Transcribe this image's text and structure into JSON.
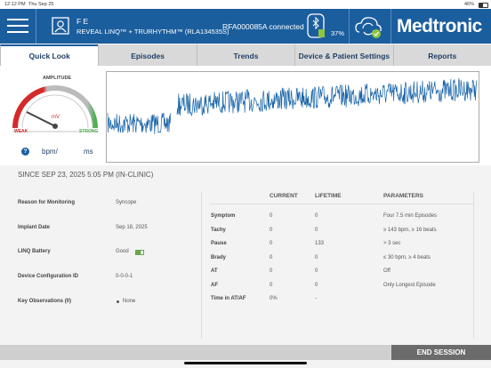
{
  "status": {
    "time": "12:12 PM",
    "date": "Thu Sep 25",
    "battery": "46%"
  },
  "header": {
    "patient": "F E",
    "device": "REVEAL LINQ™ + TRURHYTHM™ (RLA134535S)",
    "connection": "RFA000085A connected",
    "reader_battery": "37%",
    "brand": "Medtronic"
  },
  "tabs": [
    "Quick Look",
    "Episodes",
    "Trends",
    "Device & Patient Settings",
    "Reports"
  ],
  "gauge": {
    "title": "AMPLITUDE",
    "unit": "mV",
    "low": "WEAK",
    "high": "STRONG"
  },
  "rate": {
    "help": "?",
    "unit_a": "bpm/",
    "unit_b": "ms"
  },
  "summary": {
    "since": "SINCE SEP 23, 2025 5:05 PM (IN-CLINIC)",
    "info": [
      {
        "label": "Reason for Monitoring",
        "value": "Syncope"
      },
      {
        "label": "Implant Date",
        "value": "Sep 18, 2025"
      },
      {
        "label": "LINQ Battery",
        "value": "Good"
      },
      {
        "label": "Device Configuration ID",
        "value": "0-0-0-1"
      },
      {
        "label": "Key Observations (0)",
        "value": "None"
      }
    ]
  },
  "table": {
    "columns": [
      "CURRENT",
      "LIFETIME",
      "PARAMETERS"
    ],
    "rows": [
      {
        "label": "Symptom",
        "current": 0,
        "lifetime": 0,
        "parameters": "Four 7.5 min Episodes"
      },
      {
        "label": "Tachy",
        "current": 0,
        "lifetime": 0,
        "parameters": "≥ 143 bpm, ≥ 16 beats"
      },
      {
        "label": "Pause",
        "current": 0,
        "lifetime": 133,
        "parameters": "> 3 sec"
      },
      {
        "label": "Brady",
        "current": 0,
        "lifetime": 0,
        "parameters": "≤ 30 bpm, ≥ 4 beats"
      },
      {
        "label": "AT",
        "current": 0,
        "lifetime": 0,
        "parameters": "Off"
      },
      {
        "label": "AF",
        "current": 0,
        "lifetime": 0,
        "parameters": "Only Longest Episode"
      },
      {
        "label": "Time in AT/AF",
        "current": "0%",
        "lifetime": "-"
      }
    ]
  },
  "footer": {
    "button": "END SESSION"
  }
}
